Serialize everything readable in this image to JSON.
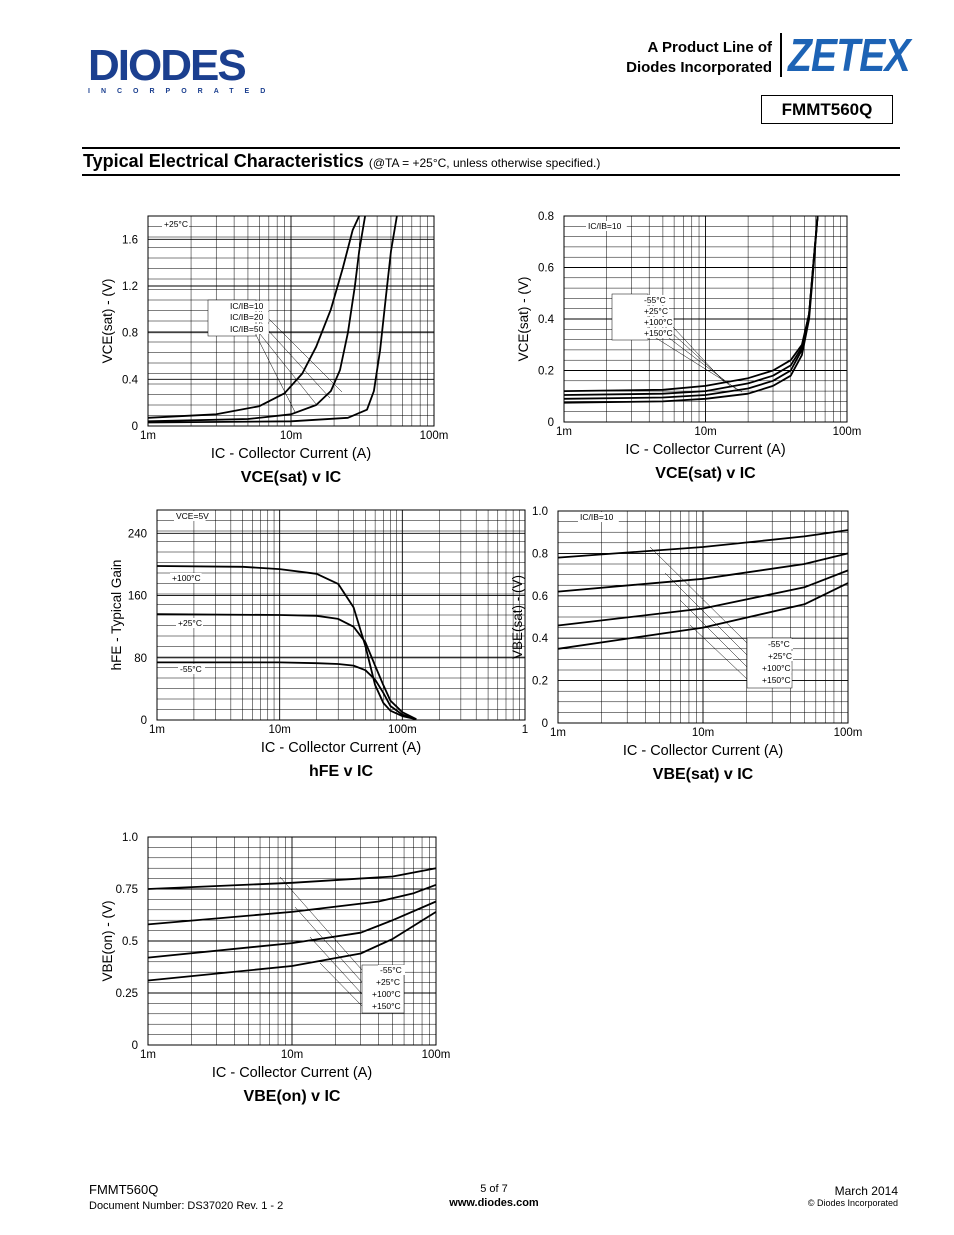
{
  "header": {
    "brand_logo": "DIODES",
    "brand_sub": "INCORPORATED",
    "product_line_1": "A Product Line of",
    "product_line_2": "Diodes Incorporated",
    "zetex_logo": "ZETEX",
    "part_number": "FMMT560Q"
  },
  "section": {
    "title": "Typical Electrical Characteristics",
    "condition": "(@TA = +25°C, unless otherwise specified.)"
  },
  "footer": {
    "part": "FMMT560Q",
    "doc_number": "Document Number: DS37020 Rev. 1 - 2",
    "page": "5 of 7",
    "website": "www.diodes.com",
    "date": "March 2014",
    "copyright": "© Diodes Incorporated"
  },
  "chart_data": [
    {
      "id": "c1",
      "type": "line",
      "title": "VCE(sat) v IC",
      "xlabel": "IC - Collector Current (A)",
      "ylabel": "VCE(sat) - (V)",
      "xscale": "log",
      "xlim": [
        0.001,
        0.1
      ],
      "ylim": [
        0,
        1.8
      ],
      "xticks": [
        "1m",
        "10m",
        "100m"
      ],
      "yticks": [
        {
          "v": 0,
          "t": "0"
        },
        {
          "v": 0.4,
          "t": "0.4"
        },
        {
          "v": 0.8,
          "t": "0.8"
        },
        {
          "v": 1.2,
          "t": "1.2"
        },
        {
          "v": 1.6,
          "t": "1.6"
        }
      ],
      "annotations": [
        "+25°C",
        "IC/IB=10",
        "IC/IB=20",
        "IC/IB=50"
      ],
      "series": [
        {
          "name": "IC/IB=10",
          "x": [
            0.001,
            0.003,
            0.006,
            0.009,
            0.012,
            0.015,
            0.019,
            0.023,
            0.027,
            0.03
          ],
          "y": [
            0.07,
            0.1,
            0.17,
            0.28,
            0.45,
            0.68,
            1.0,
            1.35,
            1.68,
            1.8
          ]
        },
        {
          "name": "IC/IB=20",
          "x": [
            0.001,
            0.005,
            0.01,
            0.015,
            0.019,
            0.022,
            0.025,
            0.028,
            0.03,
            0.033
          ],
          "y": [
            0.04,
            0.06,
            0.1,
            0.18,
            0.3,
            0.48,
            0.8,
            1.2,
            1.5,
            1.8
          ]
        },
        {
          "name": "IC/IB=50",
          "x": [
            0.001,
            0.01,
            0.025,
            0.034,
            0.038,
            0.042,
            0.046,
            0.05,
            0.055
          ],
          "y": [
            0.03,
            0.04,
            0.07,
            0.14,
            0.3,
            0.65,
            1.1,
            1.5,
            1.8
          ]
        }
      ]
    },
    {
      "id": "c2",
      "type": "line",
      "title": "VCE(sat) v IC",
      "xlabel": "IC - Collector Current (A)",
      "ylabel": "VCE(sat) - (V)",
      "xscale": "log",
      "xlim": [
        0.001,
        0.1
      ],
      "ylim": [
        0,
        0.8
      ],
      "xticks": [
        "1m",
        "10m",
        "100m"
      ],
      "yticks": [
        {
          "v": 0,
          "t": "0"
        },
        {
          "v": 0.2,
          "t": "0.2"
        },
        {
          "v": 0.4,
          "t": "0.4"
        },
        {
          "v": 0.6,
          "t": "0.6"
        },
        {
          "v": 0.8,
          "t": "0.8"
        }
      ],
      "annotations": [
        "IC/IB=10",
        "-55°C",
        "+25°C",
        "+100°C",
        "+150°C"
      ],
      "series": [
        {
          "name": "-55°C",
          "x": [
            0.001,
            0.005,
            0.01,
            0.02,
            0.03,
            0.04,
            0.048,
            0.054,
            0.058,
            0.062
          ],
          "y": [
            0.12,
            0.125,
            0.14,
            0.17,
            0.2,
            0.24,
            0.3,
            0.42,
            0.62,
            0.8
          ]
        },
        {
          "name": "+25°C",
          "x": [
            0.001,
            0.005,
            0.01,
            0.02,
            0.03,
            0.04,
            0.048,
            0.054,
            0.058,
            0.062
          ],
          "y": [
            0.105,
            0.11,
            0.12,
            0.15,
            0.18,
            0.22,
            0.29,
            0.42,
            0.62,
            0.8
          ]
        },
        {
          "name": "+100°C",
          "x": [
            0.001,
            0.005,
            0.01,
            0.02,
            0.03,
            0.04,
            0.048,
            0.054,
            0.058,
            0.062
          ],
          "y": [
            0.09,
            0.095,
            0.105,
            0.13,
            0.16,
            0.2,
            0.28,
            0.42,
            0.62,
            0.8
          ]
        },
        {
          "name": "+150°C",
          "x": [
            0.001,
            0.005,
            0.01,
            0.02,
            0.03,
            0.04,
            0.048,
            0.054,
            0.058,
            0.062
          ],
          "y": [
            0.075,
            0.08,
            0.09,
            0.11,
            0.14,
            0.18,
            0.26,
            0.4,
            0.6,
            0.8
          ]
        }
      ]
    },
    {
      "id": "c3",
      "type": "line",
      "title": "hFE v IC",
      "xlabel": "IC - Collector Current (A)",
      "ylabel": "hFE - Typical Gain",
      "xscale": "log",
      "xlim": [
        0.001,
        1
      ],
      "ylim": [
        0,
        270
      ],
      "xticks": [
        "1m",
        "10m",
        "100m",
        "1"
      ],
      "yticks": [
        {
          "v": 0,
          "t": "0"
        },
        {
          "v": 80,
          "t": "80"
        },
        {
          "v": 160,
          "t": "160"
        },
        {
          "v": 240,
          "t": "240"
        }
      ],
      "annotations": [
        "VCE=5V",
        "+100°C",
        "+25°C",
        "-55°C"
      ],
      "series": [
        {
          "name": "+100°C",
          "x": [
            0.001,
            0.005,
            0.01,
            0.02,
            0.03,
            0.04,
            0.05,
            0.06,
            0.07,
            0.08,
            0.1,
            0.13
          ],
          "y": [
            198,
            197,
            194,
            188,
            175,
            145,
            95,
            45,
            22,
            12,
            5,
            1
          ]
        },
        {
          "name": "+25°C",
          "x": [
            0.001,
            0.01,
            0.02,
            0.03,
            0.04,
            0.05,
            0.06,
            0.07,
            0.08,
            0.1,
            0.13
          ],
          "y": [
            136,
            135,
            134,
            130,
            120,
            100,
            70,
            45,
            25,
            10,
            1
          ]
        },
        {
          "name": "-55°C",
          "x": [
            0.001,
            0.01,
            0.02,
            0.03,
            0.04,
            0.05,
            0.06,
            0.07,
            0.08,
            0.1,
            0.13
          ],
          "y": [
            74,
            74,
            73,
            72,
            70,
            64,
            52,
            35,
            18,
            7,
            1
          ]
        }
      ]
    },
    {
      "id": "c4",
      "type": "line",
      "title": "VBE(sat) v IC",
      "xlabel": "IC - Collector Current (A)",
      "ylabel": "VBE(sat) - (V)",
      "xscale": "log",
      "xlim": [
        0.001,
        0.1
      ],
      "ylim": [
        0,
        1.0
      ],
      "xticks": [
        "1m",
        "10m",
        "100m"
      ],
      "yticks": [
        {
          "v": 0,
          "t": "0"
        },
        {
          "v": 0.2,
          "t": "0.2"
        },
        {
          "v": 0.4,
          "t": "0.4"
        },
        {
          "v": 0.6,
          "t": "0.6"
        },
        {
          "v": 0.8,
          "t": "0.8"
        },
        {
          "v": 1.0,
          "t": "1.0"
        }
      ],
      "annotations": [
        "IC/IB=10",
        "-55°C",
        "+25°C",
        "+100°C",
        "+150°C"
      ],
      "series": [
        {
          "name": "-55°C",
          "x": [
            0.001,
            0.01,
            0.05,
            0.1
          ],
          "y": [
            0.78,
            0.83,
            0.88,
            0.91
          ]
        },
        {
          "name": "+25°C",
          "x": [
            0.001,
            0.01,
            0.05,
            0.1
          ],
          "y": [
            0.62,
            0.68,
            0.75,
            0.8
          ]
        },
        {
          "name": "+100°C",
          "x": [
            0.001,
            0.01,
            0.05,
            0.1
          ],
          "y": [
            0.46,
            0.54,
            0.64,
            0.72
          ]
        },
        {
          "name": "+150°C",
          "x": [
            0.001,
            0.01,
            0.05,
            0.1
          ],
          "y": [
            0.35,
            0.45,
            0.56,
            0.66
          ]
        }
      ]
    },
    {
      "id": "c5",
      "type": "line",
      "title": "VBE(on) v IC",
      "xlabel": "IC - Collector Current (A)",
      "ylabel": "VBE(on) - (V)",
      "xscale": "log",
      "xlim": [
        0.001,
        0.1
      ],
      "ylim": [
        0,
        1.0
      ],
      "xticks": [
        "1m",
        "10m",
        "100m"
      ],
      "yticks": [
        {
          "v": 0,
          "t": "0"
        },
        {
          "v": 0.25,
          "t": "0.25"
        },
        {
          "v": 0.5,
          "t": "0.5"
        },
        {
          "v": 0.75,
          "t": "0.75"
        },
        {
          "v": 1.0,
          "t": "1.0"
        }
      ],
      "annotations": [
        "-55°C",
        "+25°C",
        "+100°C",
        "+150°C"
      ],
      "series": [
        {
          "name": "-55°C",
          "x": [
            0.001,
            0.01,
            0.05,
            0.1
          ],
          "y": [
            0.75,
            0.78,
            0.81,
            0.85
          ]
        },
        {
          "name": "+25°C",
          "x": [
            0.001,
            0.01,
            0.04,
            0.07,
            0.1
          ],
          "y": [
            0.58,
            0.64,
            0.69,
            0.73,
            0.77
          ]
        },
        {
          "name": "+100°C",
          "x": [
            0.001,
            0.01,
            0.03,
            0.05,
            0.1
          ],
          "y": [
            0.42,
            0.49,
            0.54,
            0.6,
            0.69
          ]
        },
        {
          "name": "+150°C",
          "x": [
            0.001,
            0.01,
            0.03,
            0.05,
            0.1
          ],
          "y": [
            0.31,
            0.38,
            0.44,
            0.51,
            0.64
          ]
        }
      ]
    }
  ]
}
